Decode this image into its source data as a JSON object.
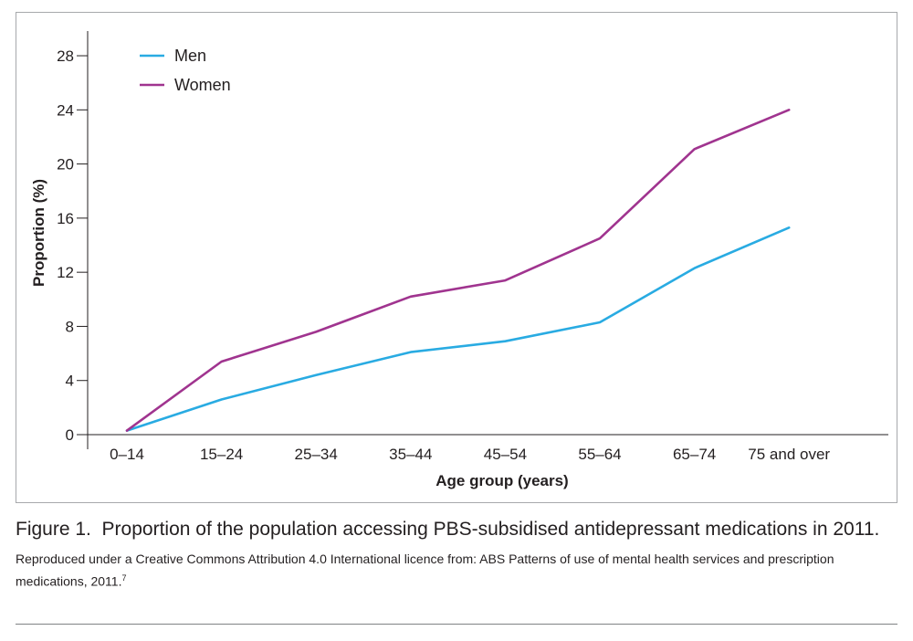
{
  "chart_data": {
    "type": "line",
    "categories": [
      "0–14",
      "15–24",
      "25–34",
      "35–44",
      "45–54",
      "55–64",
      "65–74",
      "75 and over"
    ],
    "series": [
      {
        "name": "Men",
        "color": "#29abe2",
        "values": [
          0.3,
          2.6,
          4.4,
          6.1,
          6.9,
          8.3,
          12.3,
          15.3
        ]
      },
      {
        "name": "Women",
        "color": "#a0348f",
        "values": [
          0.3,
          5.4,
          7.6,
          10.2,
          11.4,
          14.5,
          21.1,
          24.0
        ]
      }
    ],
    "xlabel": "Age group (years)",
    "ylabel": "Proportion (%)",
    "ylim": [
      0,
      28
    ],
    "yticks": [
      0,
      4,
      8,
      12,
      16,
      20,
      24,
      28
    ],
    "grid": false,
    "legend_position": "top-left"
  },
  "caption": {
    "figure_label": "Figure 1.",
    "text": "Proportion of the population accessing PBS-subsidised antidepressant medications in 2011.",
    "source_text": "Reproduced under a Creative Commons Attribution 4.0 International licence from: ABS Patterns of use of mental health services and prescription medications, 2011.",
    "source_ref": "7"
  }
}
